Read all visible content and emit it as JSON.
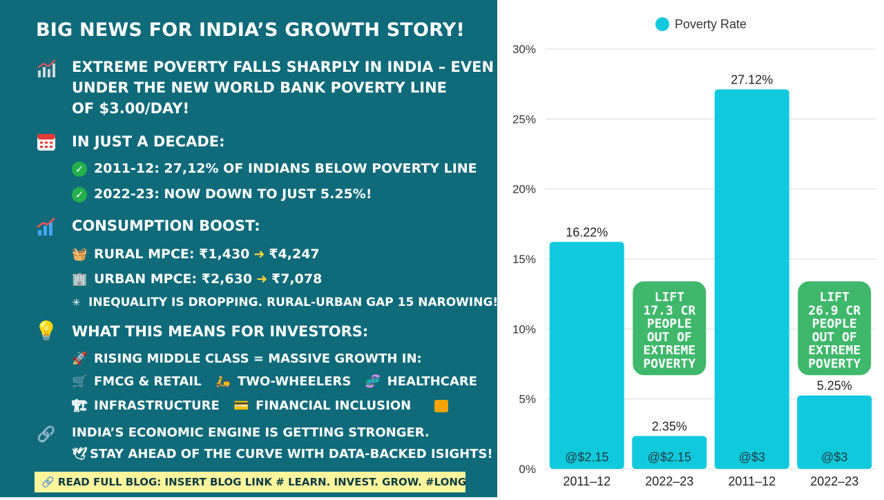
{
  "left": {
    "title": "BIG NEWS FOR INDIA’S GROWTH STORY!",
    "headline_lines": [
      "EXTREME POVERTY FALLS SHARPLY IN INDIA – EVEN",
      "UNDER THE NEW WORLD BANK POVERTY LINE",
      "OF $3.00/DAY!"
    ],
    "decade_heading": "IN JUST A DECADE:",
    "decade_points": [
      "2011-12: 27,12% OF INDIANS BELOW POVERTY LINE",
      "2022-23: NOW DOWN TO JUST 5.25%!"
    ],
    "consumption_heading": "CONSUMPTION BOOST:",
    "rural_label": "RURAL MPCE: ₹1,430",
    "rural_value": "₹4,247",
    "urban_label": "URBAN MPCE: ₹2,630",
    "urban_value": "₹7,078",
    "inequality_text": "INEQUALITY IS DROPPING. RURAL-URBAN GAP 15 NAROWING!",
    "investors_heading": "WHAT THIS MEANS FOR INVESTORS:",
    "middle_class": "RISING MIDDLE CLASS = MASSIVE GROWTH IN:",
    "sectors_row1": [
      "FMCG & RETAIL",
      "TWO-WHEELERS",
      "HEALTHCARE"
    ],
    "sectors_row2": [
      "INFRASTRUCTURE",
      "FINANCIAL INCLUSION"
    ],
    "engine_text": "INDIA’S ECONOMIC ENGINE IS GETTING STRONGER.",
    "ahead_text": "STAY AHEAD OF THE CURVE WITH DATA-BACKED ISIGHTS!",
    "banner_text": "🔗 READ FULL BLOG: INSERT BLOG LINK # LEARN. INVEST. GROW. #LONGTERMEA"
  },
  "colors": {
    "left_bg": "#0f6b7a",
    "bar": "#10c9dc",
    "callout": "#3fb86b",
    "callout_text": "#ffffff",
    "banner_bg": "#fff59d"
  },
  "chart_data": {
    "type": "bar",
    "categories": [
      "2011–12",
      "2022–23",
      "2011–12",
      "2022–23"
    ],
    "series": [
      {
        "name": "Poverty Rate",
        "values": [
          16.22,
          2.35,
          27.12,
          5.25
        ]
      }
    ],
    "data_labels": [
      "16.22%",
      "2.35%",
      "27.12%",
      "5.25%"
    ],
    "bar_labels": [
      "@$2.15",
      "@$2.15",
      "@$3",
      "@$3"
    ],
    "yticks": [
      "0%",
      "5%",
      "10%",
      "15%",
      "20%",
      "25%",
      "30%"
    ],
    "ylim": [
      0,
      30
    ],
    "grid": true,
    "legend": "top-center",
    "annotations": [
      {
        "bar_index": 1,
        "lines": [
          "LIFT",
          "17.3 CR",
          "PEOPLE",
          "OUT OF",
          "EXTREME",
          "POVERTY"
        ]
      },
      {
        "bar_index": 3,
        "lines": [
          "LIFT",
          "26.9 CR",
          "PEOPLE",
          "OUT OF",
          "EXTREME",
          "POVERTY"
        ]
      }
    ]
  }
}
